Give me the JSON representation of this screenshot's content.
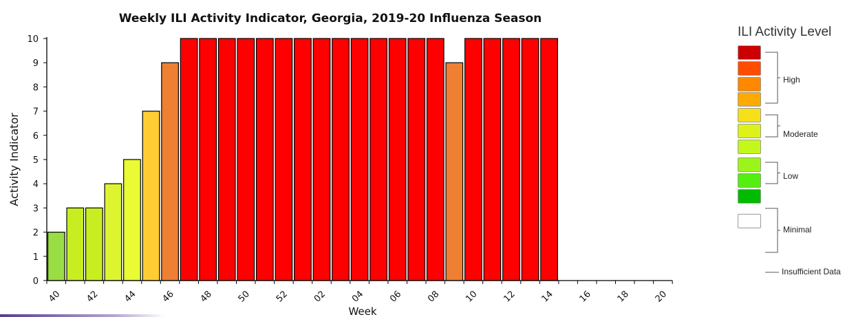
{
  "chart_data": {
    "type": "bar",
    "title": "Weekly ILI Activity Indicator, Georgia, 2019-20 Influenza Season",
    "xlabel": "Week",
    "ylabel": "Activity Indicator",
    "ylim": [
      0,
      10
    ],
    "yticks": [
      "0",
      "1",
      "2",
      "3",
      "4",
      "5",
      "6",
      "7",
      "8",
      "9",
      "10"
    ],
    "x_tick_labels": [
      "40",
      "42",
      "44",
      "46",
      "48",
      "50",
      "52",
      "02",
      "04",
      "06",
      "08",
      "10",
      "12",
      "14",
      "16",
      "18",
      "20"
    ],
    "categories": [
      "40",
      "41",
      "42",
      "43",
      "44",
      "45",
      "46",
      "47",
      "48",
      "49",
      "50",
      "51",
      "52",
      "01",
      "02",
      "03",
      "04",
      "05",
      "06",
      "07",
      "08",
      "09",
      "10",
      "11",
      "12",
      "13",
      "14",
      "15",
      "16",
      "17",
      "18",
      "19",
      "20"
    ],
    "values": [
      2,
      3,
      3,
      4,
      5,
      7,
      9,
      10,
      10,
      10,
      10,
      10,
      10,
      10,
      10,
      10,
      10,
      10,
      10,
      10,
      10,
      9,
      10,
      10,
      10,
      10,
      10,
      null,
      null,
      null,
      null,
      null,
      null
    ],
    "level_colors": {
      "1": "#66ff00",
      "2": "#99dd44",
      "3": "#c8ee22",
      "4": "#ddf531",
      "5": "#e8fb33",
      "6": "#f5e433",
      "7": "#ffcc33",
      "8": "#ff8800",
      "9": "#ee7f33",
      "10": "#ff0000"
    },
    "grid": false
  },
  "legend": {
    "title": "ILI Activity Level",
    "swatch_colors": [
      "#cc0000",
      "#ff4c00",
      "#ff8800",
      "#ffaa00",
      "#f5e01a",
      "#ddf21a",
      "#c4f71a",
      "#9cf51a",
      "#55ee11",
      "#00bb00",
      "#ffffff"
    ],
    "groups": {
      "high": "High",
      "moderate": "Moderate",
      "low": "Low",
      "minimal": "Minimal",
      "insufficient": "Insufficient Data"
    }
  }
}
